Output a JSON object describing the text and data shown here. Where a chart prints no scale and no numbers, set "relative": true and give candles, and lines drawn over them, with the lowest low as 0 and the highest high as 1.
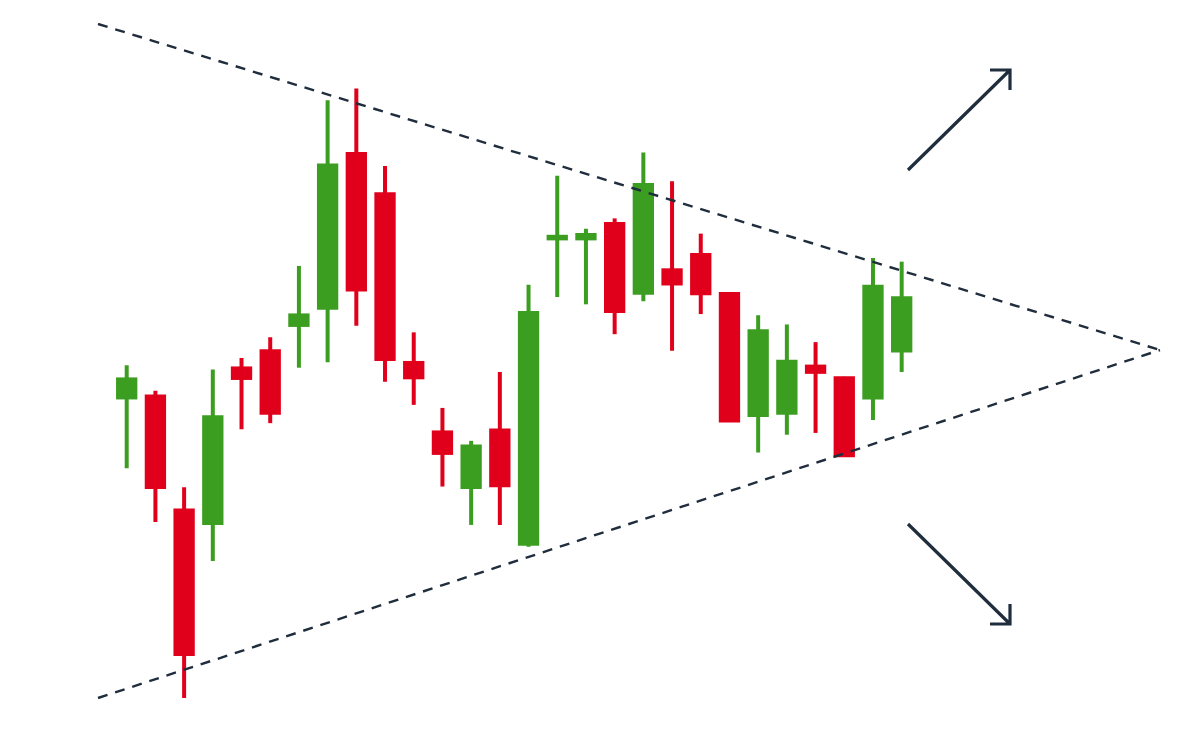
{
  "chart_data": {
    "type": "candlestick",
    "relative": true,
    "marker": "none",
    "categories": [
      null,
      null,
      null,
      null,
      null,
      null,
      null,
      null,
      null,
      null,
      null,
      null,
      null,
      null,
      null,
      null,
      null,
      null,
      null,
      null,
      null,
      null,
      null,
      null,
      null,
      null,
      null,
      null,
      null,
      null,
      null,
      null,
      null,
      null,
      null,
      null,
      null,
      null
    ],
    "ohlc": [
      null,
      [
        0.491,
        0.546,
        0.377,
        0.525
      ],
      [
        0.497,
        0.504,
        0.289,
        0.344
      ],
      [
        0.31,
        0.346,
        0,
        0.07
      ],
      [
        0.285,
        0.539,
        0.225,
        0.463
      ],
      [
        0.543,
        0.558,
        0.441,
        0.523
      ],
      [
        0.571,
        0.592,
        0.451,
        0.466
      ],
      [
        0.61,
        0.709,
        0.542,
        0.63
      ],
      [
        0.638,
        0.981,
        0.551,
        0.876
      ],
      [
        0.895,
        1,
        0.611,
        0.668
      ],
      [
        0.829,
        0.873,
        0.519,
        0.554
      ],
      [
        0.552,
        0.6,
        0.481,
        0.524
      ],
      [
        0.438,
        0.476,
        0.347,
        0.4
      ],
      [
        0.344,
        0.422,
        0.284,
        0.415
      ],
      [
        0.441,
        0.535,
        0.284,
        0.347
      ],
      [
        0.251,
        0.678,
        0.248,
        0.634
      ],
      [
        0.752,
        0.857,
        0.658,
        0.759
      ],
      [
        0.752,
        0.77,
        0.646,
        0.762
      ],
      [
        0.78,
        0.787,
        0.597,
        0.633
      ],
      [
        0.663,
        0.895,
        0.651,
        0.844
      ],
      [
        0.704,
        0.848,
        0.57,
        0.678
      ],
      [
        0.729,
        0.762,
        0.63,
        0.662
      ],
      [
        0.665,
        0.665,
        0.453,
        0.453
      ],
      [
        0.462,
        0.628,
        0.403,
        0.604
      ],
      [
        0.466,
        0.613,
        0.432,
        0.554
      ],
      [
        0.546,
        0.584,
        0.435,
        0.533
      ],
      [
        0.527,
        0.527,
        0.396,
        0.396
      ],
      [
        0.491,
        0.722,
        0.456,
        0.677
      ],
      [
        0.568,
        0.716,
        0.535,
        0.658
      ],
      null,
      null,
      null,
      null,
      null,
      null,
      null,
      null,
      null
    ],
    "colors": [
      null,
      "#3c9e20",
      "#e0001b",
      "#e0001b",
      "#3c9e20",
      "#e0001b",
      "#e0001b",
      "#3c9e20",
      "#3c9e20",
      "#e0001b",
      "#e0001b",
      "#e0001b",
      "#e0001b",
      "#3c9e20",
      "#e0001b",
      "#3c9e20",
      "#3c9e20",
      "#3c9e20",
      "#e0001b",
      "#3c9e20",
      "#e0001b",
      "#e0001b",
      "#e0001b",
      "#3c9e20",
      "#3c9e20",
      "#e0001b",
      "#e0001b",
      "#3c9e20",
      "#3c9e20",
      null,
      null,
      null,
      null,
      null,
      null,
      null,
      null,
      null
    ],
    "series": [
      {
        "type": "line",
        "color": "#1f2d3d",
        "line_style": "dashed",
        "values": [
          1.106,
          null,
          null,
          null,
          null,
          null,
          null,
          null,
          null,
          null,
          null,
          null,
          null,
          null,
          null,
          null,
          null,
          null,
          null,
          null,
          null,
          null,
          null,
          null,
          null,
          null,
          null,
          null,
          null,
          null,
          null,
          null,
          null,
          null,
          null,
          null,
          null,
          0.571
        ]
      },
      {
        "type": "line",
        "color": "#1f2d3d",
        "line_style": "dashed",
        "values": [
          0,
          null,
          null,
          null,
          null,
          null,
          null,
          null,
          null,
          null,
          null,
          null,
          null,
          null,
          null,
          null,
          null,
          null,
          null,
          null,
          null,
          null,
          null,
          null,
          null,
          null,
          null,
          null,
          null,
          null,
          null,
          null,
          null,
          null,
          null,
          null,
          null,
          0.571
        ]
      }
    ]
  }
}
